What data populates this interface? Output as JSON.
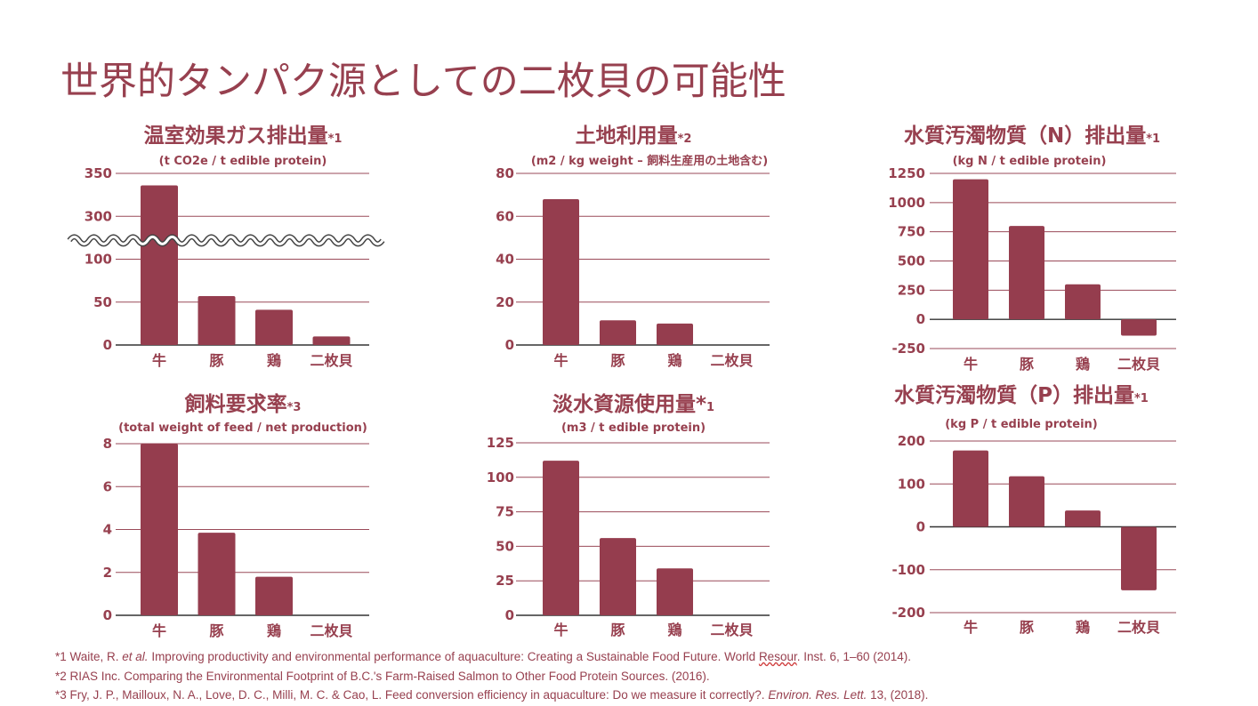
{
  "slide": {
    "title": "世界的タンパク源としての二枚貝の可能性",
    "colors": {
      "accent": "#97404f",
      "bar": "#953d4e",
      "grid": "#9a4a58",
      "zero": "#333333"
    }
  },
  "chart_data": [
    {
      "type": "bar",
      "title": "温室効果ガス排出量",
      "note": "*1",
      "subtitle": "(t CO2e / t edible protein)",
      "categories": [
        "牛",
        "豚",
        "鶏",
        "二枚貝"
      ],
      "values": [
        336,
        57,
        41,
        10
      ],
      "yticks": [
        0,
        50,
        100,
        300,
        350
      ],
      "ylim": [
        0,
        350
      ],
      "axis_break": [
        100,
        300
      ],
      "grid": true
    },
    {
      "type": "bar",
      "title": "土地利用量",
      "note": "*2",
      "subtitle": "(m2 / kg weight – 飼料生産用の土地含む)",
      "categories": [
        "牛",
        "豚",
        "鶏",
        "二枚貝"
      ],
      "values": [
        68,
        11.5,
        10,
        0
      ],
      "yticks": [
        0,
        20,
        40,
        60,
        80
      ],
      "ylim": [
        0,
        80
      ],
      "grid": true
    },
    {
      "type": "bar",
      "title": "水質汚濁物質（N）排出量",
      "note": "*1",
      "subtitle": "(kg N / t edible protein)",
      "categories": [
        "牛",
        "豚",
        "鶏",
        "二枚貝"
      ],
      "values": [
        1200,
        800,
        300,
        -140
      ],
      "yticks": [
        -250,
        0,
        250,
        500,
        750,
        1000,
        1250
      ],
      "ylim": [
        -250,
        1250
      ],
      "grid": true
    },
    {
      "type": "bar",
      "title": "飼料要求率",
      "note": "*3",
      "subtitle": "(total weight of feed / net production)",
      "categories": [
        "牛",
        "豚",
        "鶏",
        "二枚貝"
      ],
      "values": [
        8,
        3.85,
        1.8,
        0
      ],
      "yticks": [
        0,
        2,
        4,
        6,
        8
      ],
      "ylim": [
        0,
        8
      ],
      "grid": true
    },
    {
      "type": "bar",
      "title": "淡水資源使用量*",
      "note": "1",
      "subtitle": "(m3 / t edible protein)",
      "categories": [
        "牛",
        "豚",
        "鶏",
        "二枚貝"
      ],
      "values": [
        112,
        56,
        34,
        0
      ],
      "yticks": [
        0,
        25,
        50,
        75,
        100,
        125
      ],
      "ylim": [
        0,
        125
      ],
      "grid": true
    },
    {
      "type": "bar",
      "title": "水質汚濁物質（P）排出量",
      "note": "*1",
      "subtitle": "(kg P / t edible protein)",
      "categories": [
        "牛",
        "豚",
        "鶏",
        "二枚貝"
      ],
      "values": [
        178,
        118,
        38,
        -148
      ],
      "yticks": [
        -200,
        -100,
        0,
        100,
        200
      ],
      "ylim": [
        -200,
        200
      ],
      "grid": true
    }
  ],
  "footnotes": {
    "f1": {
      "pre": "*1 Waite, R. ",
      "etal": "et al.",
      "mid": " Improving productivity and environmental performance of aquaculture: Creating a Sustainable Food Future. World ",
      "resour": "Resour",
      "post": ". Inst. 6, 1–60 (2014)."
    },
    "f2": "*2 RIAS Inc. Comparing the Environmental Footprint of B.C.'s Farm-Raised Salmon to Other Food Protein Sources. (2016).",
    "f3": {
      "pre": "*3 Fry, J. P., Mailloux, N. A., Love, D. C., Milli, M. C. & Cao, L. Feed conversion efficiency in aquaculture: Do we measure it correctly?. ",
      "journal": "Environ. Res. Lett.",
      "post": " 13, (2018)."
    }
  }
}
